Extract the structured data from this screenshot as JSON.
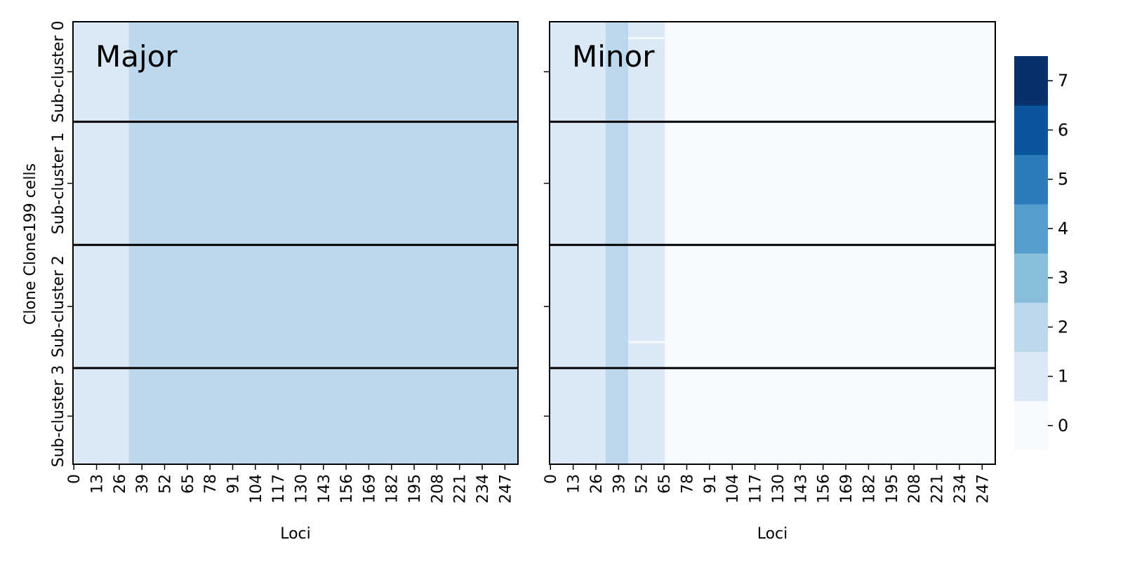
{
  "figure": {
    "ylabel": "Clone Clone199 cells"
  },
  "chart_data": [
    {
      "type": "heatmap",
      "title": "Major",
      "xlabel": "Loci",
      "xlim": [
        0,
        255
      ],
      "x_ticks": [
        0,
        13,
        26,
        39,
        52,
        65,
        78,
        91,
        104,
        117,
        130,
        143,
        156,
        169,
        182,
        195,
        208,
        221,
        234,
        247
      ],
      "rows": [
        "Sub-cluster 0",
        "Sub-cluster 1",
        "Sub-cluster 2",
        "Sub-cluster 3"
      ],
      "row_cell_counts": [
        52,
        64,
        64,
        50
      ],
      "segments": [
        {
          "row": 0,
          "x0": 0,
          "x1": 32,
          "value": 1
        },
        {
          "row": 0,
          "x0": 32,
          "x1": 255,
          "value": 2
        },
        {
          "row": 1,
          "x0": 0,
          "x1": 32,
          "value": 1
        },
        {
          "row": 1,
          "x0": 32,
          "x1": 255,
          "value": 2
        },
        {
          "row": 2,
          "x0": 0,
          "x1": 32,
          "value": 1
        },
        {
          "row": 2,
          "x0": 32,
          "x1": 255,
          "value": 2
        },
        {
          "row": 3,
          "x0": 0,
          "x1": 32,
          "value": 1
        },
        {
          "row": 3,
          "x0": 32,
          "x1": 255,
          "value": 2
        }
      ],
      "outlier_cells": []
    },
    {
      "type": "heatmap",
      "title": "Minor",
      "xlabel": "Loci",
      "xlim": [
        0,
        255
      ],
      "x_ticks": [
        0,
        13,
        26,
        39,
        52,
        65,
        78,
        91,
        104,
        117,
        130,
        143,
        156,
        169,
        182,
        195,
        208,
        221,
        234,
        247
      ],
      "rows": [
        "Sub-cluster 0",
        "Sub-cluster 1",
        "Sub-cluster 2",
        "Sub-cluster 3"
      ],
      "row_cell_counts": [
        52,
        64,
        64,
        50
      ],
      "segments": [
        {
          "row": 0,
          "x0": 0,
          "x1": 32,
          "value": 1
        },
        {
          "row": 0,
          "x0": 32,
          "x1": 45,
          "value": 2
        },
        {
          "row": 0,
          "x0": 45,
          "x1": 66,
          "value": 1
        },
        {
          "row": 0,
          "x0": 66,
          "x1": 255,
          "value": 0
        },
        {
          "row": 1,
          "x0": 0,
          "x1": 32,
          "value": 1
        },
        {
          "row": 1,
          "x0": 32,
          "x1": 45,
          "value": 2
        },
        {
          "row": 1,
          "x0": 45,
          "x1": 66,
          "value": 1
        },
        {
          "row": 1,
          "x0": 66,
          "x1": 255,
          "value": 0
        },
        {
          "row": 2,
          "x0": 0,
          "x1": 32,
          "value": 1
        },
        {
          "row": 2,
          "x0": 32,
          "x1": 45,
          "value": 2
        },
        {
          "row": 2,
          "x0": 45,
          "x1": 66,
          "value": 1
        },
        {
          "row": 2,
          "x0": 66,
          "x1": 255,
          "value": 0
        },
        {
          "row": 3,
          "x0": 0,
          "x1": 32,
          "value": 1
        },
        {
          "row": 3,
          "x0": 32,
          "x1": 45,
          "value": 2
        },
        {
          "row": 3,
          "x0": 45,
          "x1": 66,
          "value": 1
        },
        {
          "row": 3,
          "x0": 66,
          "x1": 255,
          "value": 0
        }
      ],
      "outlier_cells": [
        {
          "row": 0,
          "cell": 8,
          "x0": 45,
          "x1": 66,
          "value": 0
        },
        {
          "row": 2,
          "cell": 50,
          "x0": 45,
          "x1": 66,
          "value": 0
        }
      ]
    }
  ],
  "colorbar": {
    "ticks": [
      0,
      1,
      2,
      3,
      4,
      5,
      6,
      7
    ],
    "range": [
      -0.5,
      7.5
    ],
    "colors": [
      "#f7fbff",
      "#dbe9f6",
      "#bdd7ec",
      "#89bedc",
      "#539ecd",
      "#2b7bba",
      "#0b559f",
      "#08306b"
    ]
  }
}
